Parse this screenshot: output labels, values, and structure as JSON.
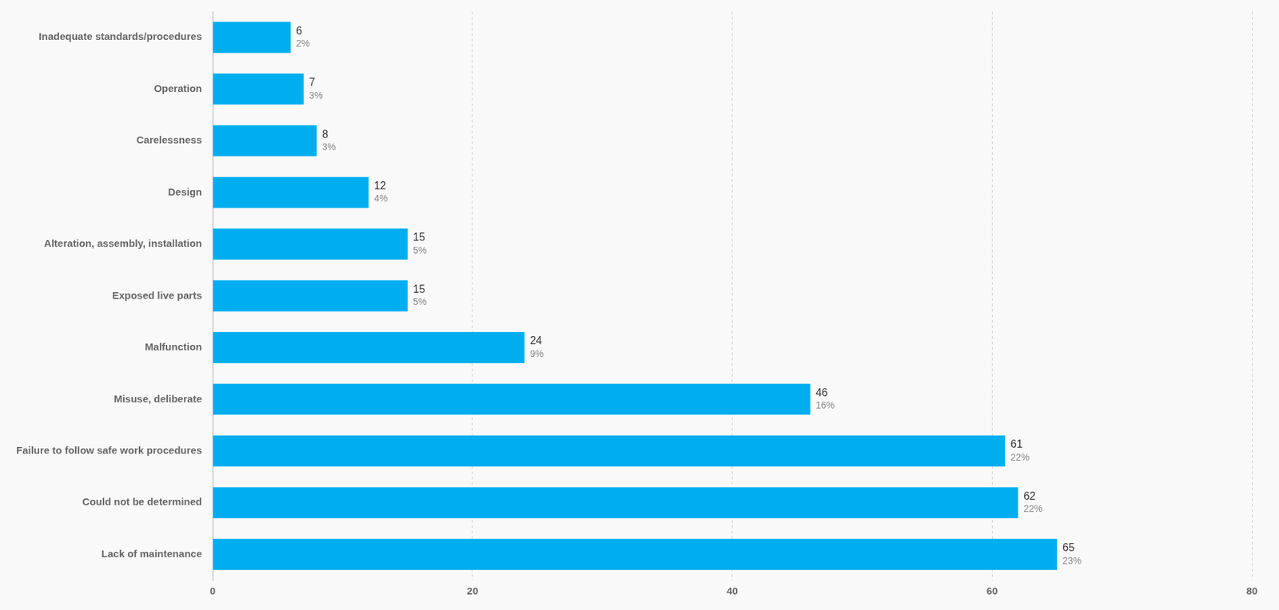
{
  "chart_data": {
    "type": "bar",
    "orientation": "horizontal",
    "categories": [
      "Lack of maintenance",
      "Could not be determined",
      "Failure to follow safe work procedures",
      "Misuse, deliberate",
      "Malfunction",
      "Exposed live parts",
      "Alteration, assembly, installation",
      "Design",
      "Carelessness",
      "Operation",
      "Inadequate standards/procedures"
    ],
    "values": [
      65,
      62,
      61,
      46,
      24,
      15,
      15,
      12,
      8,
      7,
      6
    ],
    "percentages": [
      "23%",
      "22%",
      "22%",
      "16%",
      "9%",
      "5%",
      "5%",
      "4%",
      "3%",
      "3%",
      "2%"
    ],
    "color": "#00AEEF",
    "xlim": [
      0,
      80
    ],
    "xticks": [
      0,
      20,
      40,
      60,
      80
    ],
    "grid": true,
    "data_labels": true
  }
}
